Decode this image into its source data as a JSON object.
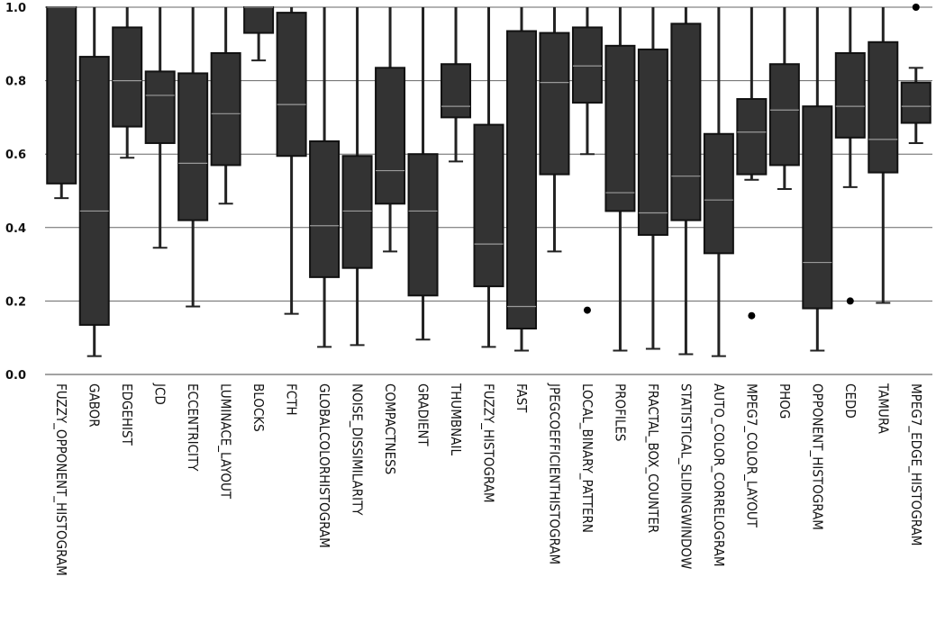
{
  "chart_data": {
    "type": "box",
    "title": "",
    "xlabel": "",
    "ylabel": "",
    "ylim": [
      0,
      1
    ],
    "yticks": [
      "0.0",
      "0.2",
      "0.4",
      "0.6",
      "0.8",
      "1.0"
    ],
    "grid": "horizontal",
    "box_color": "#333333",
    "categories": [
      "FUZZY_OPPONENT_HISTOGRAM",
      "GABOR",
      "EDGEHIST",
      "JCD",
      "ECCENTRICITY",
      "LUMINACE_LAYOUT",
      "BLOCKS",
      "FCTH",
      "GLOBALCOLORHISTOGRAM",
      "NOISE_DISSIMILARITY",
      "COMPACTNESS",
      "GRADIENT",
      "THUMBNAIL",
      "FUZZY_HISTOGRAM",
      "FAST",
      "JPEGCOEFFICIENTHISTOGRAM",
      "LOCAL_BINARY_PATTERN",
      "PROFILES",
      "FRACTAL_BOX_COUNTER",
      "STATISTICAL_SLIDINGWINDOW",
      "AUTO_COLOR_CORRELOGRAM",
      "MPEG7_COLOR_LAYOUT",
      "PHOG",
      "OPPONENT_HISTOGRAM",
      "CEDD",
      "TAMURA",
      "MPEG7_EDGE_HISTOGRAM"
    ],
    "boxes": [
      {
        "whisker_low": 0.48,
        "q1": 0.52,
        "median": 1.0,
        "q3": 1.0,
        "whisker_high": 1.0,
        "outliers": []
      },
      {
        "whisker_low": 0.05,
        "q1": 0.135,
        "median": 0.445,
        "q3": 0.865,
        "whisker_high": 1.0,
        "outliers": []
      },
      {
        "whisker_low": 0.59,
        "q1": 0.675,
        "median": 0.8,
        "q3": 0.945,
        "whisker_high": 1.0,
        "outliers": []
      },
      {
        "whisker_low": 0.345,
        "q1": 0.63,
        "median": 0.76,
        "q3": 0.825,
        "whisker_high": 1.0,
        "outliers": []
      },
      {
        "whisker_low": 0.185,
        "q1": 0.42,
        "median": 0.575,
        "q3": 0.82,
        "whisker_high": 1.0,
        "outliers": []
      },
      {
        "whisker_low": 0.465,
        "q1": 0.57,
        "median": 0.71,
        "q3": 0.875,
        "whisker_high": 1.0,
        "outliers": []
      },
      {
        "whisker_low": 0.855,
        "q1": 0.93,
        "median": 1.0,
        "q3": 1.0,
        "whisker_high": 1.0,
        "outliers": []
      },
      {
        "whisker_low": 0.165,
        "q1": 0.595,
        "median": 0.735,
        "q3": 0.985,
        "whisker_high": 1.0,
        "outliers": []
      },
      {
        "whisker_low": 0.075,
        "q1": 0.265,
        "median": 0.405,
        "q3": 0.635,
        "whisker_high": 1.0,
        "outliers": []
      },
      {
        "whisker_low": 0.08,
        "q1": 0.29,
        "median": 0.445,
        "q3": 0.595,
        "whisker_high": 1.0,
        "outliers": []
      },
      {
        "whisker_low": 0.335,
        "q1": 0.465,
        "median": 0.555,
        "q3": 0.835,
        "whisker_high": 1.0,
        "outliers": []
      },
      {
        "whisker_low": 0.095,
        "q1": 0.215,
        "median": 0.445,
        "q3": 0.6,
        "whisker_high": 1.0,
        "outliers": []
      },
      {
        "whisker_low": 0.58,
        "q1": 0.7,
        "median": 0.73,
        "q3": 0.845,
        "whisker_high": 1.0,
        "outliers": []
      },
      {
        "whisker_low": 0.075,
        "q1": 0.24,
        "median": 0.355,
        "q3": 0.68,
        "whisker_high": 1.0,
        "outliers": []
      },
      {
        "whisker_low": 0.065,
        "q1": 0.125,
        "median": 0.185,
        "q3": 0.935,
        "whisker_high": 1.0,
        "outliers": []
      },
      {
        "whisker_low": 0.335,
        "q1": 0.545,
        "median": 0.795,
        "q3": 0.93,
        "whisker_high": 1.0,
        "outliers": []
      },
      {
        "whisker_low": 0.6,
        "q1": 0.74,
        "median": 0.84,
        "q3": 0.945,
        "whisker_high": 1.0,
        "outliers": [
          0.175
        ]
      },
      {
        "whisker_low": 0.065,
        "q1": 0.445,
        "median": 0.495,
        "q3": 0.895,
        "whisker_high": 1.0,
        "outliers": []
      },
      {
        "whisker_low": 0.07,
        "q1": 0.38,
        "median": 0.44,
        "q3": 0.885,
        "whisker_high": 1.0,
        "outliers": []
      },
      {
        "whisker_low": 0.055,
        "q1": 0.42,
        "median": 0.54,
        "q3": 0.955,
        "whisker_high": 1.0,
        "outliers": []
      },
      {
        "whisker_low": 0.05,
        "q1": 0.33,
        "median": 0.475,
        "q3": 0.655,
        "whisker_high": 1.0,
        "outliers": []
      },
      {
        "whisker_low": 0.53,
        "q1": 0.545,
        "median": 0.66,
        "q3": 0.75,
        "whisker_high": 1.0,
        "outliers": [
          0.16
        ]
      },
      {
        "whisker_low": 0.505,
        "q1": 0.57,
        "median": 0.72,
        "q3": 0.845,
        "whisker_high": 1.0,
        "outliers": []
      },
      {
        "whisker_low": 0.065,
        "q1": 0.18,
        "median": 0.305,
        "q3": 0.73,
        "whisker_high": 1.0,
        "outliers": []
      },
      {
        "whisker_low": 0.51,
        "q1": 0.645,
        "median": 0.73,
        "q3": 0.875,
        "whisker_high": 1.0,
        "outliers": [
          0.2
        ]
      },
      {
        "whisker_low": 0.195,
        "q1": 0.55,
        "median": 0.64,
        "q3": 0.905,
        "whisker_high": 1.0,
        "outliers": []
      },
      {
        "whisker_low": 0.63,
        "q1": 0.685,
        "median": 0.73,
        "q3": 0.795,
        "whisker_high": 0.835,
        "outliers": [
          1.0
        ]
      }
    ]
  }
}
